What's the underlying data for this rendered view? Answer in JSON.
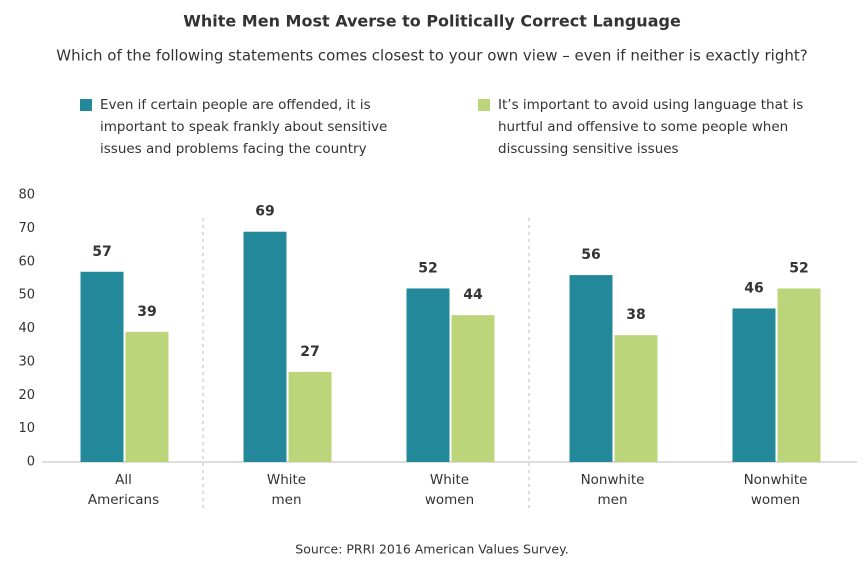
{
  "chart_data": {
    "type": "bar",
    "title": "White Men Most Averse to Politically Correct Language",
    "subtitle": "Which of the following statements comes closest to your own view – even if neither is exactly right?",
    "categories": [
      "All Americans",
      "White men",
      "White women",
      "Nonwhite men",
      "Nonwhite women"
    ],
    "series": [
      {
        "name": "Even if certain people are offended, it is important to speak frankly about sensitive issues and problems facing the country",
        "color": "#23889a",
        "values": [
          57,
          69,
          52,
          56,
          46
        ]
      },
      {
        "name": "It’s important to avoid using language that is hurtful and offensive to some people when discussing sensitive issues",
        "color": "#bdd57a",
        "values": [
          39,
          27,
          44,
          38,
          52
        ]
      }
    ],
    "ylim": [
      0,
      80
    ],
    "yticks": [
      0,
      10,
      20,
      30,
      40,
      50,
      60,
      70,
      80
    ],
    "grid": false,
    "source": "Source: PRRI 2016 American Values Survey."
  }
}
